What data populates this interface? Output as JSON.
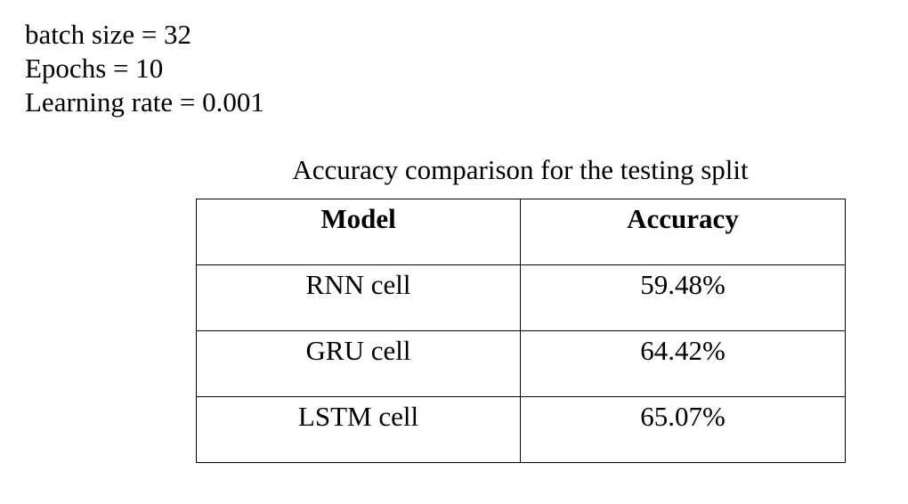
{
  "params": {
    "batch_size": "batch size = 32",
    "epochs": "Epochs = 10",
    "learning_rate": "Learning rate = 0.001"
  },
  "table": {
    "caption": "Accuracy comparison for the testing split",
    "headers": [
      "Model",
      "Accuracy"
    ],
    "rows": [
      {
        "model": "RNN cell",
        "accuracy": "59.48%"
      },
      {
        "model": "GRU cell",
        "accuracy": "64.42%"
      },
      {
        "model": "LSTM cell",
        "accuracy": "65.07%"
      }
    ]
  }
}
